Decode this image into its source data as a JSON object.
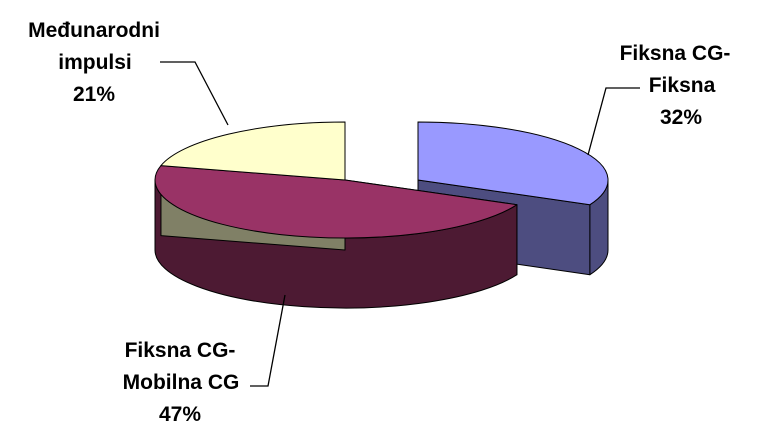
{
  "chart_data": {
    "type": "pie",
    "title": "",
    "legend": "none",
    "slices": [
      {
        "label_lines": [
          "Fiksna CG-",
          "Fiksna"
        ],
        "pct_text": "32%",
        "value": 32,
        "color": "#9999ff",
        "side_color": "#4d4d80",
        "exploded": true
      },
      {
        "label_lines": [
          "Fiksna CG-",
          "Mobilna CG"
        ],
        "pct_text": "47%",
        "value": 47,
        "color": "#993366",
        "side_color": "#4d1a33",
        "exploded": false
      },
      {
        "label_lines": [
          "Međunarodni",
          "impulsi"
        ],
        "pct_text": "21%",
        "value": 21,
        "color": "#ffffcc",
        "side_color": "#808066",
        "exploded": false
      }
    ]
  }
}
